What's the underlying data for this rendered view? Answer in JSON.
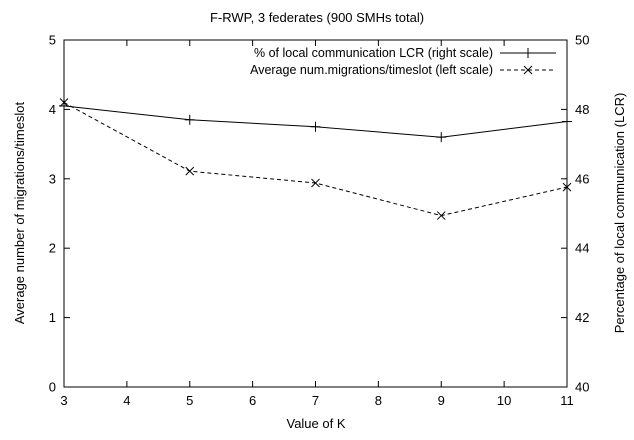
{
  "chart_data": {
    "type": "line",
    "title": "F-RWP, 3 federates (900 SMHs total)",
    "xlabel": "Value of K",
    "ylabel": "Average number of migrations/timeslot",
    "ylabel_right": "Percentage of local communication (LCR)",
    "x": [
      3,
      5,
      7,
      9,
      11
    ],
    "xlim": [
      3,
      11
    ],
    "xticks": [
      "3",
      "4",
      "5",
      "6",
      "7",
      "8",
      "9",
      "10",
      "11"
    ],
    "ylim": [
      0,
      5
    ],
    "yticks": [
      "0",
      "1",
      "2",
      "3",
      "4",
      "5"
    ],
    "ylim_right": [
      40,
      50
    ],
    "yticks_right": [
      "40",
      "42",
      "44",
      "46",
      "48",
      "50"
    ],
    "legend_position": "top-right",
    "grid": false,
    "series": [
      {
        "name": "% of local communication LCR (right scale)",
        "axis": "right",
        "marker": "plus",
        "line_style": "solid",
        "values": [
          48.1,
          47.7,
          47.5,
          47.2,
          47.65
        ]
      },
      {
        "name": "Average num.migrations/timeslot (left scale)",
        "axis": "left",
        "marker": "cross",
        "line_style": "dashed",
        "values": [
          4.1,
          3.11,
          2.94,
          2.47,
          2.88
        ]
      }
    ],
    "colors": {
      "line": "#000000",
      "background": "#ffffff"
    }
  }
}
